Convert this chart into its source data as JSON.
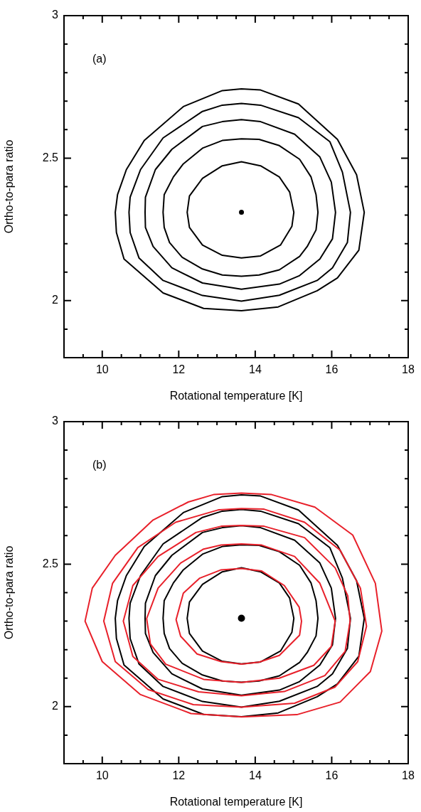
{
  "chart_data": [
    {
      "type": "scatter",
      "xlabel": "Rotational temperature [K]",
      "ylabel": "Ortho-to-para ratio",
      "annotations": [
        "(a)"
      ],
      "xlim": [
        9,
        18
      ],
      "ylim": [
        1.8,
        3
      ],
      "xticks": [
        {
          "value": 9.5,
          "label": null
        },
        10,
        {
          "value": 10.5,
          "label": null
        },
        {
          "value": 11,
          "label": null
        },
        {
          "value": 11.5,
          "label": null
        },
        12,
        {
          "value": 12.5,
          "label": null
        },
        {
          "value": 13,
          "label": null
        },
        {
          "value": 13.5,
          "label": null
        },
        14,
        {
          "value": 14.5,
          "label": null
        },
        {
          "value": 15,
          "label": null
        },
        {
          "value": 15.5,
          "label": null
        },
        16,
        {
          "value": 16.5,
          "label": null
        },
        {
          "value": 17,
          "label": null
        },
        {
          "value": 17.5,
          "label": null
        },
        18
      ],
      "yticks": [
        {
          "value": 1.9,
          "label": null
        },
        2,
        {
          "value": 2.1,
          "label": null
        },
        {
          "value": 2.2,
          "label": null
        },
        {
          "value": 2.3,
          "label": null
        },
        {
          "value": 2.4,
          "label": null
        },
        2.5,
        {
          "value": 2.6,
          "label": null
        },
        {
          "value": 2.7,
          "label": null
        },
        {
          "value": 2.8,
          "label": null
        },
        {
          "value": 2.9,
          "label": null
        },
        3
      ],
      "grid": false,
      "legend": false,
      "marker": "circle",
      "series": [
        {
          "color": "#000000",
          "x": [
            13.64
          ],
          "values": [
            2.31
          ]
        }
      ]
    },
    {
      "type": "scatter",
      "xlabel": "Rotational temperature [K]",
      "ylabel": "Ortho-to-para ratio",
      "annotations": [
        "(b)"
      ],
      "xlim": [
        9,
        18
      ],
      "ylim": [
        1.8,
        3
      ],
      "xticks": [
        {
          "value": 9.5,
          "label": null
        },
        10,
        {
          "value": 10.5,
          "label": null
        },
        {
          "value": 11,
          "label": null
        },
        {
          "value": 11.5,
          "label": null
        },
        12,
        {
          "value": 12.5,
          "label": null
        },
        {
          "value": 13,
          "label": null
        },
        {
          "value": 13.5,
          "label": null
        },
        14,
        {
          "value": 14.5,
          "label": null
        },
        {
          "value": 15,
          "label": null
        },
        {
          "value": 15.5,
          "label": null
        },
        16,
        {
          "value": 16.5,
          "label": null
        },
        {
          "value": 17,
          "label": null
        },
        {
          "value": 17.5,
          "label": null
        },
        18
      ],
      "yticks": [
        {
          "value": 1.9,
          "label": null
        },
        2,
        {
          "value": 2.1,
          "label": null
        },
        {
          "value": 2.2,
          "label": null
        },
        {
          "value": 2.3,
          "label": null
        },
        {
          "value": 2.4,
          "label": null
        },
        2.5,
        {
          "value": 2.6,
          "label": null
        },
        {
          "value": 2.7,
          "label": null
        },
        {
          "value": 2.8,
          "label": null
        },
        {
          "value": 2.9,
          "label": null
        },
        3
      ],
      "grid": false,
      "legend": false,
      "marker": "circle",
      "series": [
        {
          "color": "#000000",
          "x": [
            13.64
          ],
          "values": [
            2.31
          ]
        }
      ]
    }
  ]
}
